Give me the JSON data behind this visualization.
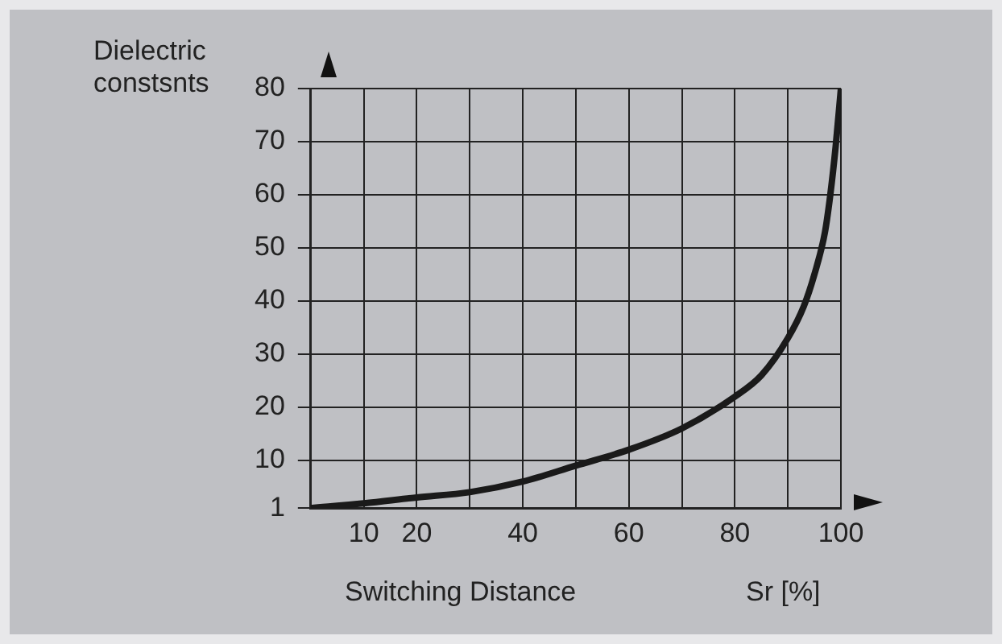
{
  "chart_data": {
    "type": "line",
    "xlabel": "Switching Distance",
    "ylabel": "Dielectric constsnts",
    "annotations": [
      "Sr [%]"
    ],
    "x": [
      0,
      10,
      20,
      30,
      40,
      50,
      60,
      70,
      80,
      85,
      90,
      93,
      95,
      97,
      98,
      99,
      100
    ],
    "series": [
      {
        "color": "#1a1a1a",
        "values": [
          1,
          1.9,
          3,
          4,
          6,
          9,
          12,
          16,
          22,
          26,
          33,
          39,
          45,
          53,
          60,
          69,
          80
        ]
      }
    ],
    "xlim": [
      0,
      100
    ],
    "xticks": [
      10,
      20,
      {
        "value": 30,
        "label": null
      },
      40,
      {
        "value": 50,
        "label": null
      },
      60,
      {
        "value": 70,
        "label": null
      },
      80,
      {
        "value": 90,
        "label": null
      },
      100
    ],
    "ylim": [
      1,
      80
    ],
    "yticks": [
      1,
      10,
      20,
      30,
      40,
      50,
      60,
      70,
      80
    ],
    "grid": true,
    "legend": false,
    "marker": "none",
    "line_style": "solid"
  }
}
